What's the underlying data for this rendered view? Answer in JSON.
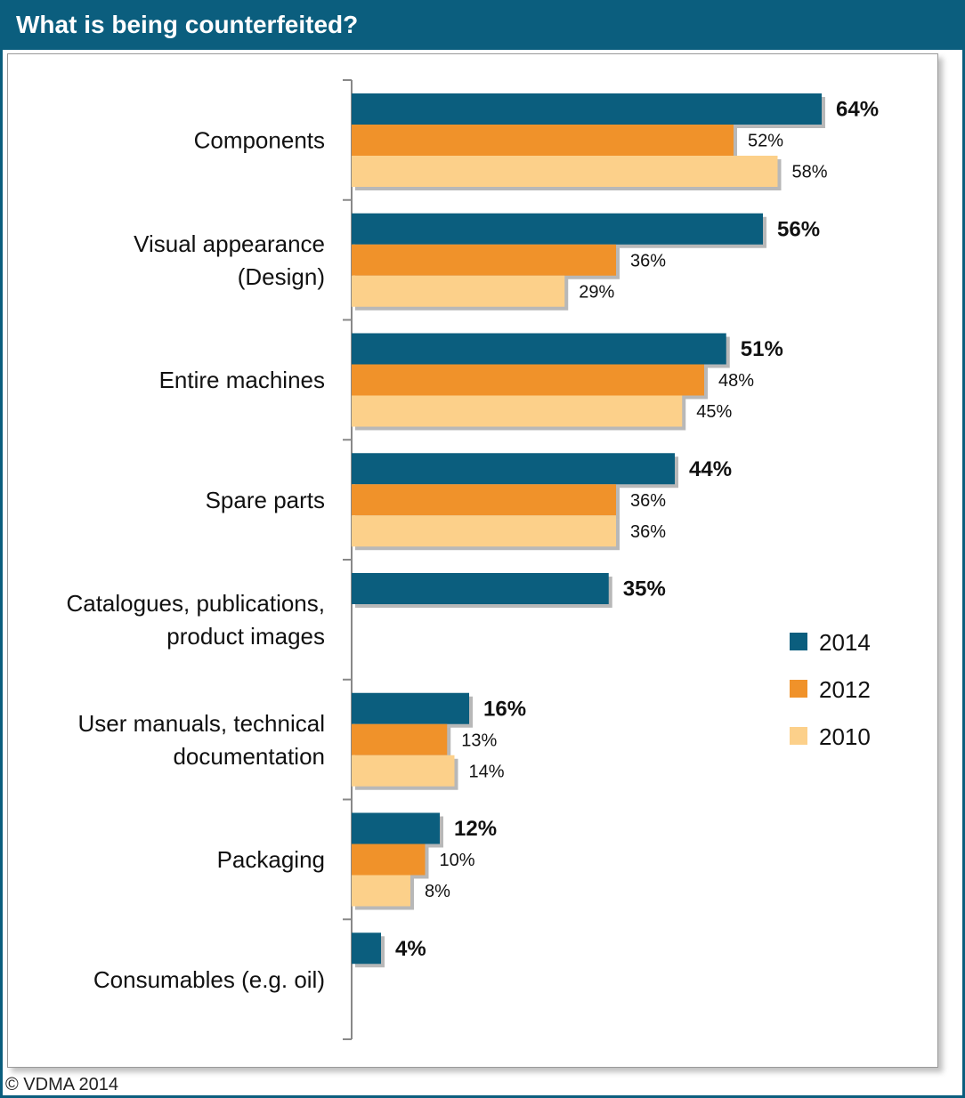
{
  "title": "What is being counterfeited?",
  "footer": "© VDMA 2014",
  "colors": {
    "header_bg": "#0b5e7e",
    "2014": "#0b5e7e",
    "2012": "#f0922a",
    "2010": "#fcd08a"
  },
  "chart_data": {
    "type": "bar",
    "orientation": "horizontal",
    "title": "What is being counterfeited?",
    "categories": [
      "Components",
      "Visual appearance\n(Design)",
      "Entire machines",
      "Spare parts",
      "Catalogues, publications,\nproduct images",
      "User manuals, technical\ndocumentation",
      "Packaging",
      "Consumables (e.g. oil)"
    ],
    "series": [
      {
        "name": "2014",
        "values": [
          64,
          56,
          51,
          44,
          35,
          16,
          12,
          4
        ]
      },
      {
        "name": "2012",
        "values": [
          52,
          36,
          48,
          36,
          null,
          13,
          10,
          null
        ]
      },
      {
        "name": "2010",
        "values": [
          58,
          29,
          45,
          36,
          null,
          14,
          8,
          null
        ]
      }
    ],
    "value_suffix": "%",
    "bold_series": "2014",
    "legend_position": "right",
    "xlim": [
      0,
      70
    ],
    "grid": false
  }
}
